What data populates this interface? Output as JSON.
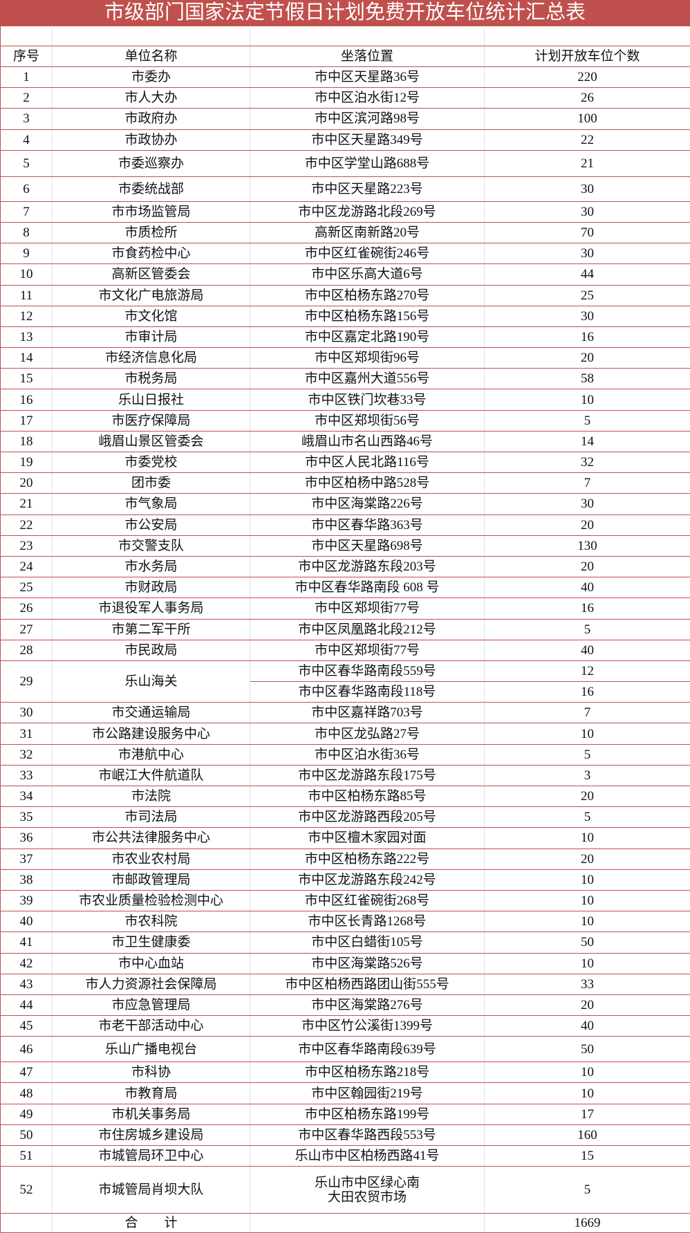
{
  "title": "市级部门国家法定节假日计划免费开放车位统计汇总表",
  "accent_color": "#c0504d",
  "columns": [
    "序号",
    "单位名称",
    "坐落位置",
    "计划开放车位个数"
  ],
  "rows": [
    {
      "no": "1",
      "unit": "市委办",
      "locations": [
        {
          "addr": "市中区天星路36号",
          "count": "220"
        }
      ]
    },
    {
      "no": "2",
      "unit": "市人大办",
      "locations": [
        {
          "addr": "市中区泊水街12号",
          "count": "26"
        }
      ]
    },
    {
      "no": "3",
      "unit": "市政府办",
      "locations": [
        {
          "addr": "市中区滨河路98号",
          "count": "100"
        }
      ]
    },
    {
      "no": "4",
      "unit": "市政协办",
      "locations": [
        {
          "addr": "市中区天星路349号",
          "count": "22"
        }
      ]
    },
    {
      "no": "5",
      "unit": "市委巡察办",
      "locations": [
        {
          "addr": "市中区学堂山路688号",
          "count": "21"
        }
      ]
    },
    {
      "no": "6",
      "unit": "市委统战部",
      "locations": [
        {
          "addr": "市中区天星路223号",
          "count": "30"
        }
      ]
    },
    {
      "no": "7",
      "unit": "市市场监管局",
      "locations": [
        {
          "addr": "市中区龙游路北段269号",
          "count": "30"
        }
      ]
    },
    {
      "no": "8",
      "unit": "市质检所",
      "locations": [
        {
          "addr": "高新区南新路20号",
          "count": "70"
        }
      ]
    },
    {
      "no": "9",
      "unit": "市食药检中心",
      "locations": [
        {
          "addr": "市中区红雀碗街246号",
          "count": "30"
        }
      ]
    },
    {
      "no": "10",
      "unit": "高新区管委会",
      "locations": [
        {
          "addr": "市中区乐高大道6号",
          "count": "44"
        }
      ]
    },
    {
      "no": "11",
      "unit": "市文化广电旅游局",
      "locations": [
        {
          "addr": "市中区柏杨东路270号",
          "count": "25"
        }
      ]
    },
    {
      "no": "12",
      "unit": "市文化馆",
      "locations": [
        {
          "addr": "市中区柏杨东路156号",
          "count": "30"
        }
      ]
    },
    {
      "no": "13",
      "unit": "市审计局",
      "locations": [
        {
          "addr": "市中区嘉定北路190号",
          "count": "16"
        }
      ]
    },
    {
      "no": "14",
      "unit": "市经济信息化局",
      "locations": [
        {
          "addr": "市中区郑坝街96号",
          "count": "20"
        }
      ]
    },
    {
      "no": "15",
      "unit": "市税务局",
      "locations": [
        {
          "addr": "市中区嘉州大道556号",
          "count": "58"
        }
      ]
    },
    {
      "no": "16",
      "unit": "乐山日报社",
      "locations": [
        {
          "addr": "市中区铁门坎巷33号",
          "count": "10"
        }
      ]
    },
    {
      "no": "17",
      "unit": "市医疗保障局",
      "locations": [
        {
          "addr": "市中区郑坝街56号",
          "count": "5"
        }
      ]
    },
    {
      "no": "18",
      "unit": "峨眉山景区管委会",
      "locations": [
        {
          "addr": "峨眉山市名山西路46号",
          "count": "14"
        }
      ]
    },
    {
      "no": "19",
      "unit": "市委党校",
      "locations": [
        {
          "addr": "市中区人民北路116号",
          "count": "32"
        }
      ]
    },
    {
      "no": "20",
      "unit": "团市委",
      "locations": [
        {
          "addr": "市中区柏杨中路528号",
          "count": "7"
        }
      ]
    },
    {
      "no": "21",
      "unit": "市气象局",
      "locations": [
        {
          "addr": "市中区海棠路226号",
          "count": "30"
        }
      ]
    },
    {
      "no": "22",
      "unit": "市公安局",
      "locations": [
        {
          "addr": "市中区春华路363号",
          "count": "20"
        }
      ]
    },
    {
      "no": "23",
      "unit": "市交警支队",
      "locations": [
        {
          "addr": "市中区天星路698号",
          "count": "130"
        }
      ]
    },
    {
      "no": "24",
      "unit": "市水务局",
      "locations": [
        {
          "addr": "市中区龙游路东段203号",
          "count": "20"
        }
      ]
    },
    {
      "no": "25",
      "unit": "市财政局",
      "locations": [
        {
          "addr": "市中区春华路南段 608 号",
          "count": "40"
        }
      ]
    },
    {
      "no": "26",
      "unit": "市退役军人事务局",
      "locations": [
        {
          "addr": "市中区郑坝街77号",
          "count": "16"
        }
      ]
    },
    {
      "no": "27",
      "unit": "市第二军干所",
      "locations": [
        {
          "addr": "市中区凤凰路北段212号",
          "count": "5"
        }
      ]
    },
    {
      "no": "28",
      "unit": "市民政局",
      "locations": [
        {
          "addr": "市中区郑坝街77号",
          "count": "40"
        }
      ]
    },
    {
      "no": "29",
      "unit": "乐山海关",
      "locations": [
        {
          "addr": "市中区春华路南段559号",
          "count": "12"
        },
        {
          "addr": "市中区春华路南段118号",
          "count": "16"
        }
      ]
    },
    {
      "no": "30",
      "unit": "市交通运输局",
      "locations": [
        {
          "addr": "市中区嘉祥路703号",
          "count": "7"
        }
      ]
    },
    {
      "no": "31",
      "unit": "市公路建设服务中心",
      "locations": [
        {
          "addr": "市中区龙弘路27号",
          "count": "10"
        }
      ]
    },
    {
      "no": "32",
      "unit": "市港航中心",
      "locations": [
        {
          "addr": "市中区泊水街36号",
          "count": "5"
        }
      ]
    },
    {
      "no": "33",
      "unit": "市岷江大件航道队",
      "locations": [
        {
          "addr": "市中区龙游路东段175号",
          "count": "3"
        }
      ]
    },
    {
      "no": "34",
      "unit": "市法院",
      "locations": [
        {
          "addr": "市中区柏杨东路85号",
          "count": "20"
        }
      ]
    },
    {
      "no": "35",
      "unit": "市司法局",
      "locations": [
        {
          "addr": "市中区龙游路西段205号",
          "count": "5"
        }
      ]
    },
    {
      "no": "36",
      "unit": "市公共法律服务中心",
      "locations": [
        {
          "addr": "市中区檀木家园对面",
          "count": "10"
        }
      ]
    },
    {
      "no": "37",
      "unit": "市农业农村局",
      "locations": [
        {
          "addr": "市中区柏杨东路222号",
          "count": "20"
        }
      ]
    },
    {
      "no": "38",
      "unit": "市邮政管理局",
      "locations": [
        {
          "addr": "市中区龙游路东段242号",
          "count": "10"
        }
      ]
    },
    {
      "no": "39",
      "unit": "市农业质量检验检测中心",
      "locations": [
        {
          "addr": "市中区红雀碗街268号",
          "count": "10"
        }
      ]
    },
    {
      "no": "40",
      "unit": "市农科院",
      "locations": [
        {
          "addr": "市中区长青路1268号",
          "count": "10"
        }
      ]
    },
    {
      "no": "41",
      "unit": "市卫生健康委",
      "locations": [
        {
          "addr": "市中区白蜡街105号",
          "count": "50"
        }
      ]
    },
    {
      "no": "42",
      "unit": "市中心血站",
      "locations": [
        {
          "addr": "市中区海棠路526号",
          "count": "10"
        }
      ]
    },
    {
      "no": "43",
      "unit": "市人力资源社会保障局",
      "locations": [
        {
          "addr": "市中区柏杨西路团山街555号",
          "count": "33"
        }
      ]
    },
    {
      "no": "44",
      "unit": "市应急管理局",
      "locations": [
        {
          "addr": "市中区海棠路276号",
          "count": "20"
        }
      ]
    },
    {
      "no": "45",
      "unit": "市老干部活动中心",
      "locations": [
        {
          "addr": "市中区竹公溪街1399号",
          "count": "40"
        }
      ]
    },
    {
      "no": "46",
      "unit": "乐山广播电视台",
      "locations": [
        {
          "addr": "市中区春华路南段639号",
          "count": "50"
        }
      ]
    },
    {
      "no": "47",
      "unit": "市科协",
      "locations": [
        {
          "addr": "市中区柏杨东路218号",
          "count": "10"
        }
      ]
    },
    {
      "no": "48",
      "unit": "市教育局",
      "locations": [
        {
          "addr": "市中区翰园街219号",
          "count": "10"
        }
      ]
    },
    {
      "no": "49",
      "unit": "市机关事务局",
      "locations": [
        {
          "addr": "市中区柏杨东路199号",
          "count": "17"
        }
      ]
    },
    {
      "no": "50",
      "unit": "市住房城乡建设局",
      "locations": [
        {
          "addr": "市中区春华路西段553号",
          "count": "160"
        }
      ]
    },
    {
      "no": "51",
      "unit": "市城管局环卫中心",
      "locations": [
        {
          "addr": "乐山市中区柏杨西路41号",
          "count": "15"
        }
      ]
    },
    {
      "no": "52",
      "unit": "市城管局肖坝大队",
      "locations": [
        {
          "addr": "乐山市中区绿心南\n大田农贸市场",
          "count": "5"
        }
      ]
    }
  ],
  "total": {
    "label": "合　　计",
    "count": "1669"
  }
}
